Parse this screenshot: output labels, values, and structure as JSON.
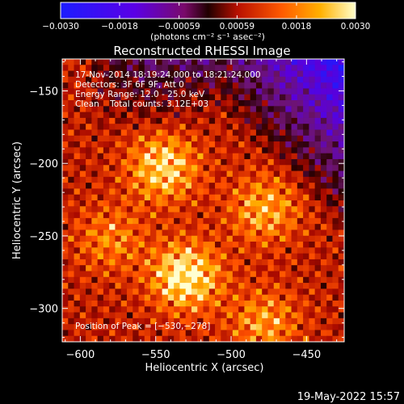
{
  "chart_data": {
    "type": "heatmap",
    "title": "Reconstructed RHESSI Image",
    "xlabel": "Heliocentric X (arcsec)",
    "ylabel": "Heliocentric Y (arcsec)",
    "xlim": [
      -612,
      -425
    ],
    "ylim": [
      -323,
      -128
    ],
    "xticks": [
      -600,
      -550,
      -500,
      -450
    ],
    "xtick_labels": [
      "−600",
      "−550",
      "−500",
      "−450"
    ],
    "yticks": [
      -150,
      -200,
      -250,
      -300
    ],
    "ytick_labels": [
      "−150",
      "−200",
      "−250",
      "−300"
    ],
    "colorbar": {
      "min": -0.003,
      "max": 0.003,
      "ticks": [
        -0.003,
        -0.0018,
        -0.00059,
        0.00059,
        0.0018,
        0.003
      ],
      "tick_labels": [
        "−0.0030",
        "−0.0018",
        "−0.00059",
        "0.00059",
        "0.0018",
        "0.0030"
      ],
      "unit_label": "(photons cm⁻² s⁻¹ asec⁻²)",
      "colormap": "Solar/hot: blue-purple (negative) through red-orange to yellow-white (positive)"
    },
    "annotations": [
      "17-Nov-2014 18:19:24.000 to 18:21:24.000",
      "Detectors: 3F 6F 9F, Att 0",
      "Energy Range: 12.0 - 25.0 keV",
      "Clean    Total counts: 3.12E+03"
    ],
    "peak_label": "Position of Peak = [−530,−278]",
    "peak": {
      "x": -530,
      "y": -278
    },
    "sources": [
      {
        "x": -530,
        "y": -278,
        "intensity": 1.0
      },
      {
        "x": -545,
        "y": -203,
        "intensity": 0.82
      },
      {
        "x": -478,
        "y": -232,
        "intensity": 0.62
      },
      {
        "x": -478,
        "y": -310,
        "intensity": 0.55
      },
      {
        "x": -580,
        "y": -252,
        "intensity": 0.45
      }
    ],
    "negative_region": "upper-right",
    "grid": false
  },
  "footer": {
    "timestamp": "19-May-2022 15:57"
  }
}
